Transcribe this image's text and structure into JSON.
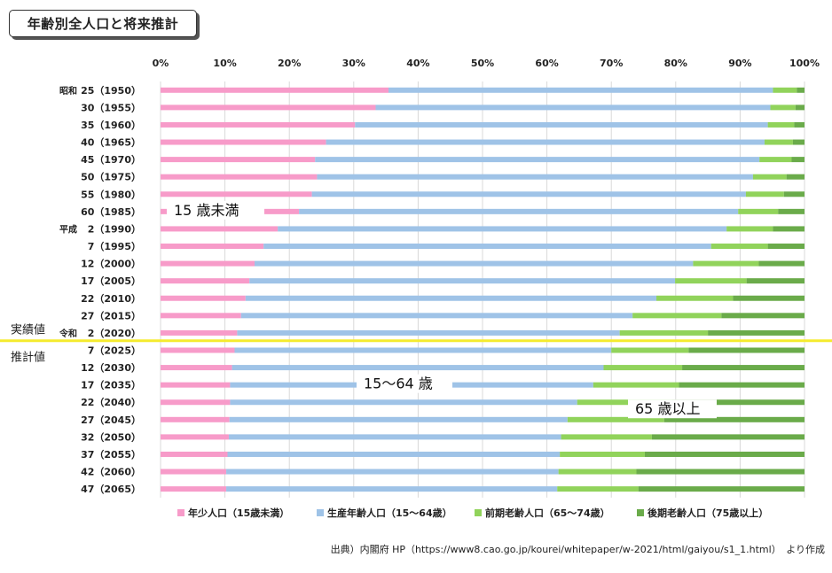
{
  "title": "年齢別全人口と将来推計",
  "chart_data": {
    "type": "bar",
    "orientation": "horizontal",
    "stacked": "percent",
    "xlim": [
      0,
      100
    ],
    "x_ticks": [
      "0%",
      "10%",
      "20%",
      "30%",
      "40%",
      "50%",
      "60%",
      "70%",
      "80%",
      "90%",
      "100%"
    ],
    "categories": [
      "25（1950）",
      "30（1955）",
      "35（1960）",
      "40（1965）",
      "45（1970）",
      "50（1975）",
      "55（1980）",
      "60（1985）",
      "2（1990）",
      "7（1995）",
      "12（2000）",
      "17（2005）",
      "22（2010）",
      "27（2015）",
      "2（2020）",
      "7（2025）",
      "12（2030）",
      "17（2035）",
      "22（2040）",
      "27（2045）",
      "32（2050）",
      "37（2055）",
      "42（2060）",
      "47（2065）"
    ],
    "era_labels": [
      {
        "row": 0,
        "text": "昭和"
      },
      {
        "row": 8,
        "text": "平成"
      },
      {
        "row": 14,
        "text": "令和"
      }
    ],
    "series": [
      {
        "name": "年少人口（15歳未満）",
        "color": "#f79bc9",
        "values": [
          35.4,
          33.4,
          30.2,
          25.7,
          24.0,
          24.3,
          23.5,
          21.5,
          18.2,
          16.0,
          14.6,
          13.8,
          13.2,
          12.5,
          11.9,
          11.5,
          11.1,
          10.8,
          10.8,
          10.7,
          10.6,
          10.4,
          10.2,
          10.2
        ]
      },
      {
        "name": "生産年齢人口（15〜64歳）",
        "color": "#9fc3e7",
        "values": [
          59.7,
          61.3,
          64.1,
          68.1,
          69.0,
          67.7,
          67.4,
          68.2,
          69.7,
          69.5,
          68.1,
          66.1,
          63.8,
          60.8,
          59.4,
          58.5,
          57.7,
          56.4,
          53.9,
          52.5,
          51.6,
          51.6,
          51.6,
          51.4
        ]
      },
      {
        "name": "前期老齢人口（65〜74歳）",
        "color": "#91d35b",
        "values": [
          3.7,
          3.9,
          4.1,
          4.4,
          5.0,
          5.2,
          5.9,
          6.2,
          7.2,
          8.8,
          10.2,
          11.1,
          11.9,
          13.8,
          13.7,
          12.0,
          12.2,
          13.3,
          14.7,
          15.0,
          14.1,
          13.2,
          12.1,
          12.6
        ]
      },
      {
        "name": "後期老齢人口（75歳以上）",
        "color": "#6aab4a",
        "values": [
          1.2,
          1.4,
          1.6,
          1.8,
          2.0,
          2.8,
          3.2,
          4.1,
          4.9,
          5.7,
          7.1,
          9.0,
          11.1,
          12.9,
          15.0,
          18.0,
          19.0,
          19.5,
          20.6,
          21.8,
          23.7,
          24.8,
          26.1,
          25.8
        ]
      }
    ],
    "annotations": {
      "child": "15 歳未満",
      "working": "15〜64 歳",
      "elderly": "65 歳以上",
      "actual": "実績値",
      "projected": "推計値"
    },
    "divider_color": "#f5eb2e",
    "grid": true,
    "legend_position": "bottom"
  },
  "source": "出典）内閣府 HP（https://www8.cao.go.jp/kourei/whitepaper/w-2021/html/gaiyou/s1_1.html）　より作成"
}
